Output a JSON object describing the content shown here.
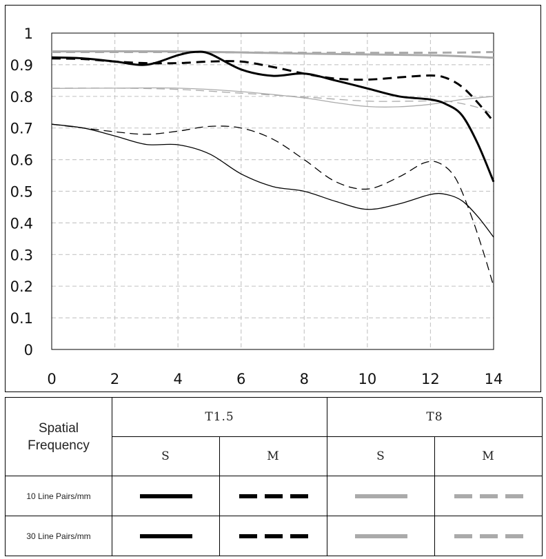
{
  "chart_data": {
    "type": "line",
    "title": "",
    "xlabel": "",
    "ylabel": "",
    "xlim": [
      0,
      14
    ],
    "ylim": [
      0,
      1
    ],
    "x_ticks": [
      "0",
      "2",
      "4",
      "6",
      "8",
      "10",
      "12",
      "14"
    ],
    "y_ticks": [
      "0",
      "0.1",
      "0.2",
      "0.3",
      "0.4",
      "0.5",
      "0.6",
      "0.7",
      "0.8",
      "0.9",
      "1"
    ],
    "grid": true,
    "series": [
      {
        "id": "t8-10-m",
        "name": "T8 10 Line Pairs/mm M",
        "color": "#aaaaaa",
        "style": "dashed",
        "weight": "thick",
        "points": [
          [
            0,
            0.94
          ],
          [
            4,
            0.94
          ],
          [
            8,
            0.938
          ],
          [
            12,
            0.938
          ],
          [
            14,
            0.94
          ]
        ]
      },
      {
        "id": "t8-10-s",
        "name": "T8 10 Line Pairs/mm S",
        "color": "#aaaaaa",
        "style": "solid",
        "weight": "thick",
        "points": [
          [
            0,
            0.942
          ],
          [
            4,
            0.942
          ],
          [
            8,
            0.935
          ],
          [
            12,
            0.93
          ],
          [
            14,
            0.922
          ]
        ]
      },
      {
        "id": "t8-30-m",
        "name": "T8 30 Line Pairs/mm M",
        "color": "#aaaaaa",
        "style": "dashed",
        "weight": "thin",
        "points": [
          [
            0,
            0.826
          ],
          [
            2,
            0.826
          ],
          [
            4,
            0.822
          ],
          [
            6,
            0.81
          ],
          [
            8,
            0.798
          ],
          [
            10,
            0.785
          ],
          [
            11.5,
            0.785
          ],
          [
            12.5,
            0.785
          ],
          [
            13.5,
            0.765
          ],
          [
            14,
            0.742
          ]
        ]
      },
      {
        "id": "t8-30-s",
        "name": "T8 30 Line Pairs/mm S",
        "color": "#aaaaaa",
        "style": "solid",
        "weight": "thin",
        "points": [
          [
            0,
            0.825
          ],
          [
            2,
            0.826
          ],
          [
            4,
            0.826
          ],
          [
            6,
            0.815
          ],
          [
            8,
            0.795
          ],
          [
            9,
            0.78
          ],
          [
            10,
            0.768
          ],
          [
            11,
            0.767
          ],
          [
            12,
            0.775
          ],
          [
            13,
            0.79
          ],
          [
            14,
            0.8
          ]
        ]
      },
      {
        "id": "t15-10-m",
        "name": "T1.5 10 Line Pairs/mm M",
        "color": "#000000",
        "style": "dashed",
        "weight": "thick",
        "points": [
          [
            0,
            0.92
          ],
          [
            1,
            0.918
          ],
          [
            2,
            0.91
          ],
          [
            3,
            0.905
          ],
          [
            4,
            0.905
          ],
          [
            5,
            0.91
          ],
          [
            6,
            0.91
          ],
          [
            7,
            0.893
          ],
          [
            8,
            0.872
          ],
          [
            9,
            0.856
          ],
          [
            10,
            0.853
          ],
          [
            11,
            0.86
          ],
          [
            12,
            0.866
          ],
          [
            12.5,
            0.858
          ],
          [
            13,
            0.83
          ],
          [
            13.5,
            0.78
          ],
          [
            14,
            0.72
          ]
        ]
      },
      {
        "id": "t15-10-s",
        "name": "T1.5 10 Line Pairs/mm S",
        "color": "#000000",
        "style": "solid",
        "weight": "thick",
        "points": [
          [
            0,
            0.923
          ],
          [
            1,
            0.92
          ],
          [
            2,
            0.91
          ],
          [
            3,
            0.9
          ],
          [
            4,
            0.93
          ],
          [
            4.5,
            0.94
          ],
          [
            5,
            0.935
          ],
          [
            6,
            0.885
          ],
          [
            7,
            0.865
          ],
          [
            8,
            0.872
          ],
          [
            9,
            0.85
          ],
          [
            10,
            0.825
          ],
          [
            11,
            0.8
          ],
          [
            12,
            0.79
          ],
          [
            12.5,
            0.775
          ],
          [
            13,
            0.74
          ],
          [
            13.5,
            0.65
          ],
          [
            14,
            0.53
          ]
        ]
      },
      {
        "id": "t15-30-m",
        "name": "T1.5 30 Line Pairs/mm M",
        "color": "#000000",
        "style": "dashed",
        "weight": "thin",
        "points": [
          [
            0,
            0.712
          ],
          [
            1,
            0.7
          ],
          [
            2,
            0.688
          ],
          [
            3,
            0.68
          ],
          [
            4,
            0.69
          ],
          [
            5,
            0.705
          ],
          [
            6,
            0.7
          ],
          [
            7,
            0.665
          ],
          [
            8,
            0.6
          ],
          [
            9,
            0.53
          ],
          [
            10,
            0.507
          ],
          [
            11,
            0.545
          ],
          [
            11.8,
            0.59
          ],
          [
            12.3,
            0.588
          ],
          [
            12.8,
            0.54
          ],
          [
            13.3,
            0.42
          ],
          [
            13.7,
            0.3
          ],
          [
            14,
            0.2
          ]
        ]
      },
      {
        "id": "t15-30-s",
        "name": "T1.5 30 Line Pairs/mm S",
        "color": "#000000",
        "style": "solid",
        "weight": "thin",
        "points": [
          [
            0,
            0.712
          ],
          [
            1,
            0.7
          ],
          [
            2,
            0.675
          ],
          [
            3,
            0.648
          ],
          [
            4,
            0.647
          ],
          [
            5,
            0.618
          ],
          [
            6,
            0.555
          ],
          [
            7,
            0.515
          ],
          [
            8,
            0.5
          ],
          [
            9,
            0.468
          ],
          [
            10,
            0.443
          ],
          [
            11,
            0.46
          ],
          [
            12,
            0.49
          ],
          [
            12.5,
            0.49
          ],
          [
            13,
            0.47
          ],
          [
            13.5,
            0.42
          ],
          [
            14,
            0.355
          ]
        ]
      }
    ]
  },
  "legend": {
    "spatial_frequency_label": "Spatial\nFrequency",
    "group_t15": "T1.5",
    "group_t8": "T8",
    "col_s": "S",
    "col_m": "M",
    "row_10": "10 Line Pairs/mm",
    "row_30": "30 Line Pairs/mm",
    "color_black": "#000000",
    "color_gray": "#aaaaaa"
  }
}
